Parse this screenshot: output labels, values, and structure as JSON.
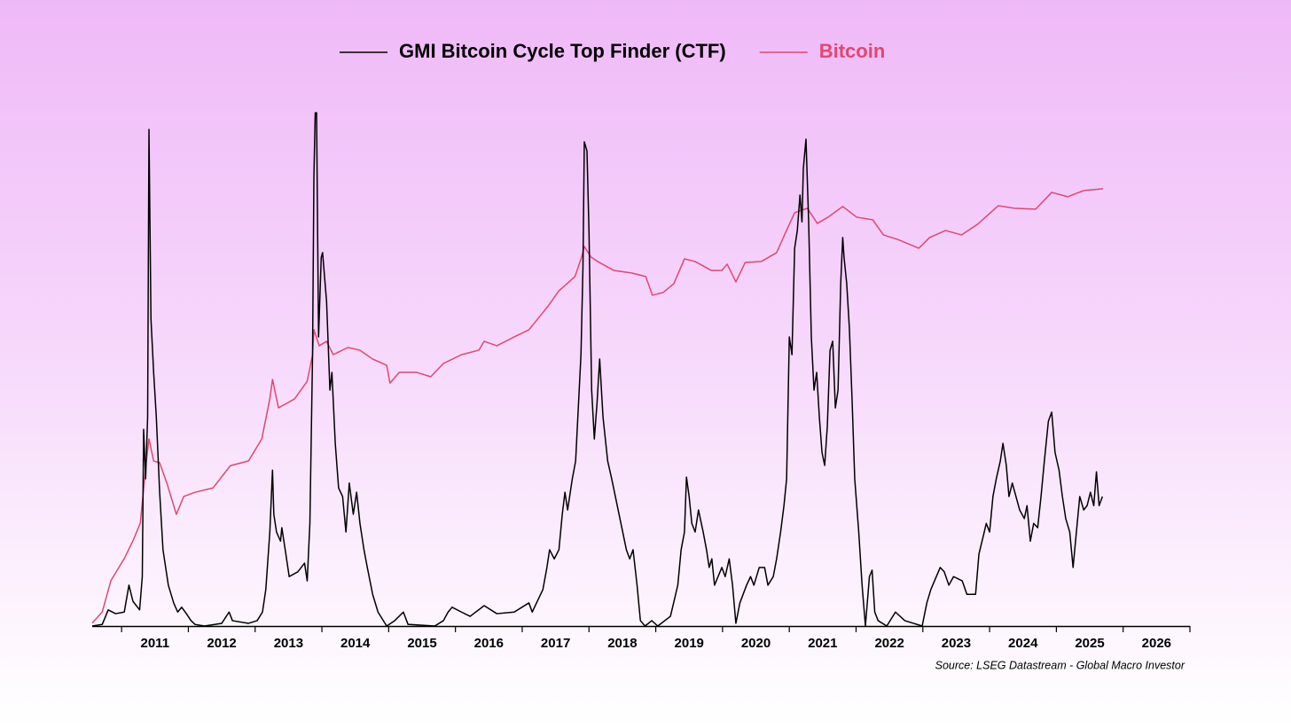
{
  "chart_data": {
    "type": "line",
    "source": "Source: LSEG Datastream - Global Macro Investor",
    "xlim": [
      2010.56,
      2027
    ],
    "xticks": [
      2011,
      2012,
      2013,
      2014,
      2015,
      2016,
      2017,
      2018,
      2019,
      2020,
      2021,
      2022,
      2023,
      2024,
      2025,
      2026
    ],
    "ylim": [
      0,
      100
    ],
    "y2lim": [
      0.05,
      2000000
    ],
    "y2scale": "log",
    "legend": "top",
    "series": [
      {
        "name": "GMI Bitcoin Cycle Top Finder (CTF)",
        "color": "#000000",
        "axis": "y",
        "x": [
          2010.56,
          2010.71,
          2010.8,
          2010.91,
          2011.04,
          2011.11,
          2011.17,
          2011.27,
          2011.31,
          2011.33,
          2011.36,
          2011.39,
          2011.41,
          2011.44,
          2011.48,
          2011.52,
          2011.57,
          2011.62,
          2011.7,
          2011.78,
          2011.84,
          2011.9,
          2011.97,
          2012.04,
          2012.1,
          2012.24,
          2012.5,
          2012.61,
          2012.66,
          2012.9,
          2013.03,
          2013.11,
          2013.16,
          2013.22,
          2013.26,
          2013.28,
          2013.32,
          2013.38,
          2013.4,
          2013.46,
          2013.51,
          2013.64,
          2013.74,
          2013.78,
          2013.82,
          2013.86,
          2013.88,
          2013.9,
          2013.92,
          2013.95,
          2013.99,
          2014.01,
          2014.07,
          2014.12,
          2014.15,
          2014.2,
          2014.25,
          2014.31,
          2014.36,
          2014.41,
          2014.47,
          2014.52,
          2014.57,
          2014.63,
          2014.68,
          2014.76,
          2014.84,
          2014.97,
          2015.09,
          2015.22,
          2015.29,
          2015.69,
          2015.82,
          2015.89,
          2015.95,
          2016.09,
          2016.22,
          2016.43,
          2016.62,
          2016.88,
          2017.1,
          2017.15,
          2017.31,
          2017.37,
          2017.41,
          2017.48,
          2017.55,
          2017.6,
          2017.64,
          2017.68,
          2017.75,
          2017.8,
          2017.84,
          2017.88,
          2017.91,
          2017.93,
          2017.97,
          2018.0,
          2018.04,
          2018.08,
          2018.12,
          2018.16,
          2018.21,
          2018.28,
          2018.34,
          2018.45,
          2018.56,
          2018.61,
          2018.66,
          2018.72,
          2018.77,
          2018.84,
          2018.94,
          2019.03,
          2019.22,
          2019.33,
          2019.38,
          2019.43,
          2019.46,
          2019.5,
          2019.54,
          2019.59,
          2019.64,
          2019.71,
          2019.76,
          2019.8,
          2019.84,
          2019.88,
          2019.99,
          2020.04,
          2020.1,
          2020.15,
          2020.2,
          2020.26,
          2020.36,
          2020.42,
          2020.47,
          2020.55,
          2020.63,
          2020.68,
          2020.76,
          2020.81,
          2020.87,
          2020.92,
          2020.96,
          2021.0,
          2021.04,
          2021.08,
          2021.12,
          2021.16,
          2021.19,
          2021.21,
          2021.25,
          2021.29,
          2021.33,
          2021.37,
          2021.41,
          2021.45,
          2021.49,
          2021.53,
          2021.57,
          2021.61,
          2021.65,
          2021.69,
          2021.73,
          2021.77,
          2021.8,
          2021.82,
          2021.86,
          2021.9,
          2021.94,
          2021.98,
          2022.04,
          2022.09,
          2022.14,
          2022.2,
          2022.24,
          2022.28,
          2022.33,
          2022.46,
          2022.59,
          2022.73,
          2022.86,
          2022.99,
          2023.06,
          2023.12,
          2023.26,
          2023.32,
          2023.39,
          2023.46,
          2023.59,
          2023.66,
          2023.79,
          2023.84,
          2023.92,
          2023.95,
          2024.0,
          2024.05,
          2024.1,
          2024.16,
          2024.2,
          2024.25,
          2024.29,
          2024.34,
          2024.45,
          2024.52,
          2024.56,
          2024.61,
          2024.66,
          2024.72,
          2024.77,
          2024.82,
          2024.88,
          2024.93,
          2024.98,
          2025.04,
          2025.09,
          2025.14,
          2025.2,
          2025.25,
          2025.3,
          2025.35,
          2025.41,
          2025.46,
          2025.51,
          2025.56,
          2025.6,
          2025.64,
          2025.69
        ],
        "values": [
          0,
          0.3,
          3.0,
          2.3,
          2.6,
          7.6,
          4.6,
          3.0,
          9.2,
          36.6,
          27.4,
          38.9,
          92.4,
          57.1,
          47.2,
          38.9,
          24.9,
          14.2,
          7.6,
          4.3,
          2.6,
          3.5,
          2.3,
          1.0,
          0.3,
          0,
          0.5,
          2.6,
          1.0,
          0.5,
          1.0,
          2.6,
          6.8,
          17.5,
          29.0,
          20.8,
          17.5,
          15.8,
          18.3,
          13.4,
          9.2,
          10.1,
          11.7,
          8.4,
          19.1,
          50.5,
          83.5,
          95.5,
          95.5,
          53.8,
          68.6,
          69.5,
          60.4,
          43.9,
          47.2,
          34.0,
          25.7,
          24.1,
          17.5,
          26.6,
          20.8,
          24.9,
          19.1,
          14.2,
          10.9,
          5.9,
          2.6,
          0,
          1.0,
          2.6,
          0.3,
          0,
          1.0,
          2.6,
          3.5,
          2.6,
          1.8,
          3.8,
          2.3,
          2.6,
          4.3,
          2.6,
          6.8,
          10.9,
          14.2,
          12.5,
          14.2,
          20.8,
          24.9,
          21.6,
          27.4,
          30.7,
          40.6,
          50.5,
          67.0,
          90.1,
          88.4,
          73.6,
          43.9,
          34.8,
          41.4,
          49.7,
          38.9,
          30.7,
          27.4,
          20.8,
          14.2,
          12.5,
          14.2,
          7.6,
          1.0,
          0,
          1.0,
          0,
          1.8,
          7.6,
          14.2,
          17.5,
          27.7,
          24.1,
          19.1,
          17.5,
          21.6,
          17.5,
          14.2,
          10.9,
          12.5,
          7.6,
          10.9,
          9.2,
          12.5,
          7.6,
          0.5,
          4.3,
          7.6,
          9.2,
          7.6,
          10.9,
          10.9,
          7.6,
          9.2,
          12.5,
          17.5,
          22.4,
          27.4,
          53.8,
          50.5,
          70.3,
          73.6,
          80.2,
          75.2,
          85.1,
          90.6,
          75.2,
          53.8,
          43.9,
          47.2,
          38.9,
          32.3,
          29.9,
          37.3,
          51.3,
          53.0,
          40.6,
          43.9,
          63.7,
          72.3,
          68.6,
          63.7,
          55.4,
          42.2,
          27.4,
          17.5,
          7.6,
          0,
          9.2,
          10.4,
          2.6,
          1.0,
          0,
          2.6,
          1.0,
          0.5,
          0,
          4.3,
          6.8,
          10.9,
          10.1,
          7.6,
          9.2,
          8.4,
          5.9,
          5.9,
          13.4,
          17.5,
          19.1,
          17.5,
          24.1,
          27.4,
          30.7,
          34.0,
          29.9,
          24.1,
          26.6,
          21.6,
          20.0,
          22.4,
          15.8,
          19.1,
          18.3,
          24.1,
          30.7,
          38.1,
          39.8,
          32.3,
          29.0,
          24.1,
          20.0,
          17.5,
          10.9,
          17.5,
          24.1,
          21.6,
          22.4,
          24.9,
          22.4,
          28.7,
          22.4,
          24.1
        ]
      },
      {
        "name": "Bitcoin",
        "color": "#e2476f",
        "axis": "y2",
        "x": [
          2010.56,
          2010.71,
          2010.84,
          2011.04,
          2011.17,
          2011.28,
          2011.37,
          2011.41,
          2011.48,
          2011.57,
          2011.68,
          2011.82,
          2011.93,
          2012.1,
          2012.37,
          2012.63,
          2012.9,
          2013.1,
          2013.22,
          2013.26,
          2013.35,
          2013.59,
          2013.78,
          2013.86,
          2013.88,
          2013.96,
          2014.07,
          2014.17,
          2014.39,
          2014.57,
          2014.76,
          2014.97,
          2015.02,
          2015.16,
          2015.42,
          2015.63,
          2015.82,
          2016.09,
          2016.35,
          2016.43,
          2016.62,
          2016.88,
          2017.1,
          2017.23,
          2017.39,
          2017.55,
          2017.79,
          2017.89,
          2017.93,
          2018.03,
          2018.13,
          2018.37,
          2018.64,
          2018.85,
          2018.95,
          2019.11,
          2019.27,
          2019.43,
          2019.59,
          2019.83,
          2019.99,
          2020.07,
          2020.2,
          2020.34,
          2020.58,
          2020.81,
          2020.97,
          2021.08,
          2021.27,
          2021.42,
          2021.58,
          2021.8,
          2022.01,
          2022.25,
          2022.41,
          2022.62,
          2022.94,
          2023.1,
          2023.34,
          2023.58,
          2023.82,
          2024.13,
          2024.37,
          2024.69,
          2024.93,
          2025.17,
          2025.41,
          2025.7
        ],
        "values": [
          0.055,
          0.079,
          0.22,
          0.45,
          0.8,
          1.43,
          10.8,
          22.2,
          10.8,
          10.2,
          5.2,
          1.9,
          3.4,
          3.9,
          4.5,
          9.3,
          10.8,
          22.2,
          81.5,
          154,
          61,
          81.5,
          145,
          345,
          776,
          461,
          533,
          345,
          436,
          399,
          299,
          244,
          137,
          194,
          194,
          168,
          259,
          345,
          399,
          533,
          461,
          615,
          776,
          1097,
          1690,
          2765,
          4395,
          8300,
          11720,
          8300,
          7175,
          5370,
          4930,
          4395,
          2393,
          2612,
          3483,
          7815,
          7175,
          5370,
          5370,
          6575,
          3690,
          6965,
          7175,
          9570,
          20890,
          35150,
          40640,
          24830,
          30400,
          43050,
          30400,
          27900,
          17060,
          14750,
          11070,
          15630,
          19720,
          17060,
          24150,
          44260,
          40640,
          39450,
          68250,
          59150,
          72450,
          76750
        ]
      }
    ]
  }
}
